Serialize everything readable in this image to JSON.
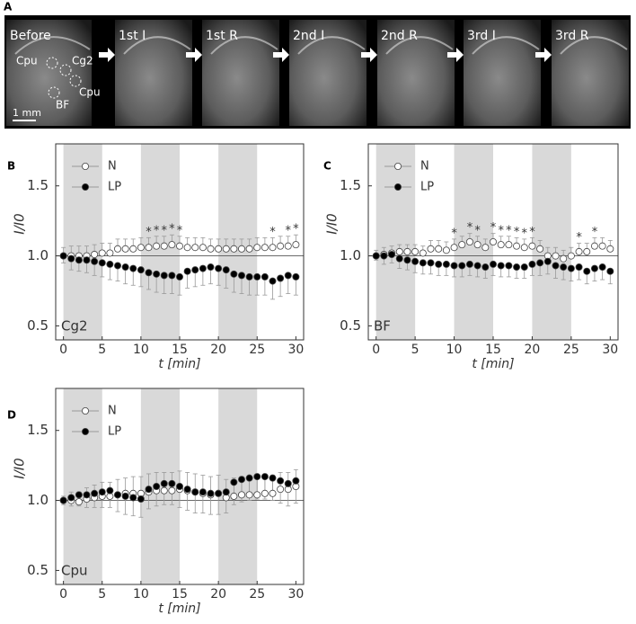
{
  "panel_a": {
    "label": "A",
    "frames": [
      "Before",
      "1st I",
      "1st R",
      "2nd I",
      "2nd R",
      "3rd I",
      "3rd R"
    ],
    "regions": [
      "Cpu",
      "Cg2",
      "Cpu",
      "BF"
    ],
    "scale": "1 mm"
  },
  "chart_data": [
    {
      "type": "errorbar",
      "panel": "B",
      "label": "Cg2",
      "xlabel": "t [min]",
      "ylabel": "I/I0",
      "xlim": [
        -1,
        31
      ],
      "ylim": [
        0.4,
        1.8
      ],
      "xticks": [
        0,
        5,
        10,
        15,
        20,
        25,
        30
      ],
      "yticks": [
        0.5,
        {
          "value": 1,
          "label": "1.0"
        },
        1.5
      ],
      "shaded": [
        [
          0,
          5
        ],
        [
          10,
          15
        ],
        [
          20,
          25
        ]
      ],
      "hline": 1,
      "legend": "upper-left",
      "x": [
        0,
        1,
        2,
        3,
        4,
        5,
        6,
        7,
        8,
        9,
        10,
        11,
        12,
        13,
        14,
        15,
        16,
        17,
        18,
        19,
        20,
        21,
        22,
        23,
        24,
        25,
        26,
        27,
        28,
        29,
        30
      ],
      "series": [
        {
          "name": "N",
          "color": "#ffffff",
          "error_direction": "up",
          "values": [
            1.0,
            1.0,
            1.0,
            1.0,
            1.01,
            1.02,
            1.02,
            1.05,
            1.05,
            1.05,
            1.06,
            1.06,
            1.07,
            1.07,
            1.08,
            1.07,
            1.06,
            1.06,
            1.06,
            1.05,
            1.05,
            1.05,
            1.05,
            1.05,
            1.05,
            1.06,
            1.06,
            1.06,
            1.07,
            1.07,
            1.08
          ],
          "errors": [
            0.06,
            0.07,
            0.07,
            0.07,
            0.07,
            0.07,
            0.07,
            0.07,
            0.07,
            0.07,
            0.07,
            0.07,
            0.07,
            0.07,
            0.07,
            0.07,
            0.07,
            0.07,
            0.07,
            0.07,
            0.07,
            0.07,
            0.07,
            0.07,
            0.07,
            0.07,
            0.07,
            0.07,
            0.07,
            0.07,
            0.07
          ]
        },
        {
          "name": "LP",
          "color": "#000000",
          "error_direction": "down",
          "values": [
            1.0,
            0.98,
            0.97,
            0.97,
            0.96,
            0.95,
            0.94,
            0.93,
            0.92,
            0.91,
            0.9,
            0.88,
            0.87,
            0.86,
            0.86,
            0.85,
            0.89,
            0.9,
            0.91,
            0.92,
            0.91,
            0.9,
            0.87,
            0.86,
            0.85,
            0.85,
            0.85,
            0.82,
            0.84,
            0.86,
            0.85
          ],
          "errors": [
            0.05,
            0.08,
            0.08,
            0.09,
            0.1,
            0.1,
            0.11,
            0.11,
            0.12,
            0.12,
            0.12,
            0.12,
            0.13,
            0.13,
            0.13,
            0.13,
            0.12,
            0.12,
            0.12,
            0.12,
            0.12,
            0.13,
            0.13,
            0.13,
            0.13,
            0.13,
            0.13,
            0.13,
            0.13,
            0.13,
            0.13
          ]
        }
      ],
      "star_label": "*",
      "star_x": [
        11,
        12,
        13,
        14,
        15,
        27,
        29,
        30
      ]
    },
    {
      "type": "errorbar",
      "panel": "C",
      "label": "BF",
      "xlabel": "t [min]",
      "ylabel": "I/I0",
      "xlim": [
        -1,
        31
      ],
      "ylim": [
        0.4,
        1.8
      ],
      "xticks": [
        0,
        5,
        10,
        15,
        20,
        25,
        30
      ],
      "yticks": [
        0.5,
        {
          "value": 1,
          "label": "1.0"
        },
        1.5
      ],
      "shaded": [
        [
          0,
          5
        ],
        [
          10,
          15
        ],
        [
          20,
          25
        ]
      ],
      "hline": 1,
      "legend": "upper-left",
      "x": [
        0,
        1,
        2,
        3,
        4,
        5,
        6,
        7,
        8,
        9,
        10,
        11,
        12,
        13,
        14,
        15,
        16,
        17,
        18,
        19,
        20,
        21,
        22,
        23,
        24,
        25,
        26,
        27,
        28,
        29,
        30
      ],
      "series": [
        {
          "name": "N",
          "color": "#ffffff",
          "error_direction": "up",
          "values": [
            1.0,
            1.01,
            1.02,
            1.03,
            1.03,
            1.03,
            1.02,
            1.05,
            1.05,
            1.04,
            1.06,
            1.08,
            1.1,
            1.08,
            1.06,
            1.1,
            1.08,
            1.08,
            1.07,
            1.06,
            1.07,
            1.05,
            1.0,
            1.0,
            0.98,
            1.0,
            1.03,
            1.03,
            1.07,
            1.07,
            1.05
          ],
          "errors": [
            0.04,
            0.05,
            0.05,
            0.05,
            0.05,
            0.05,
            0.05,
            0.06,
            0.06,
            0.06,
            0.06,
            0.06,
            0.06,
            0.06,
            0.06,
            0.06,
            0.06,
            0.06,
            0.06,
            0.06,
            0.06,
            0.06,
            0.06,
            0.06,
            0.06,
            0.06,
            0.06,
            0.06,
            0.06,
            0.06,
            0.06
          ]
        },
        {
          "name": "LP",
          "color": "#000000",
          "error_direction": "down",
          "values": [
            1.0,
            1.0,
            1.01,
            0.98,
            0.97,
            0.96,
            0.95,
            0.95,
            0.94,
            0.94,
            0.93,
            0.93,
            0.94,
            0.93,
            0.92,
            0.94,
            0.93,
            0.93,
            0.92,
            0.92,
            0.94,
            0.95,
            0.96,
            0.93,
            0.92,
            0.91,
            0.92,
            0.89,
            0.91,
            0.92,
            0.89
          ],
          "errors": [
            0.03,
            0.06,
            0.06,
            0.07,
            0.07,
            0.08,
            0.08,
            0.08,
            0.08,
            0.08,
            0.08,
            0.08,
            0.08,
            0.08,
            0.08,
            0.08,
            0.08,
            0.08,
            0.08,
            0.08,
            0.08,
            0.09,
            0.09,
            0.09,
            0.09,
            0.09,
            0.09,
            0.09,
            0.09,
            0.09,
            0.09
          ]
        }
      ],
      "star_label": "*",
      "star_x": [
        10,
        12,
        13,
        15,
        16,
        17,
        18,
        19,
        20,
        26,
        28
      ]
    },
    {
      "type": "errorbar",
      "panel": "D",
      "label": "Cpu",
      "xlabel": "t [min]",
      "ylabel": "I/I0",
      "xlim": [
        -1,
        31
      ],
      "ylim": [
        0.4,
        1.8
      ],
      "xticks": [
        0,
        5,
        10,
        15,
        20,
        25,
        30
      ],
      "yticks": [
        0.5,
        {
          "value": 1,
          "label": "1.0"
        },
        1.5
      ],
      "shaded": [
        [
          0,
          5
        ],
        [
          10,
          15
        ],
        [
          20,
          25
        ]
      ],
      "hline": 1,
      "legend": "upper-left",
      "x": [
        0,
        1,
        2,
        3,
        4,
        5,
        6,
        7,
        8,
        9,
        10,
        11,
        12,
        13,
        14,
        15,
        16,
        17,
        18,
        19,
        20,
        21,
        22,
        23,
        24,
        25,
        26,
        27,
        28,
        29,
        30
      ],
      "series": [
        {
          "name": "N",
          "color": "#ffffff",
          "error_direction": "up",
          "values": [
            1.0,
            1.0,
            0.99,
            1.01,
            1.02,
            1.03,
            1.03,
            1.04,
            1.05,
            1.05,
            1.05,
            1.06,
            1.07,
            1.07,
            1.07,
            1.08,
            1.07,
            1.06,
            1.05,
            1.04,
            1.05,
            1.02,
            1.03,
            1.04,
            1.04,
            1.04,
            1.05,
            1.05,
            1.08,
            1.08,
            1.1
          ],
          "errors": [
            0.03,
            0.06,
            0.07,
            0.08,
            0.09,
            0.1,
            0.1,
            0.11,
            0.11,
            0.12,
            0.12,
            0.13,
            0.13,
            0.13,
            0.13,
            0.13,
            0.13,
            0.13,
            0.13,
            0.13,
            0.13,
            0.13,
            0.13,
            0.13,
            0.13,
            0.13,
            0.13,
            0.13,
            0.12,
            0.12,
            0.12
          ]
        },
        {
          "name": "LP",
          "color": "#000000",
          "error_direction": "down",
          "values": [
            1.0,
            1.02,
            1.04,
            1.04,
            1.05,
            1.06,
            1.07,
            1.04,
            1.03,
            1.02,
            1.01,
            1.08,
            1.1,
            1.12,
            1.12,
            1.1,
            1.08,
            1.06,
            1.06,
            1.05,
            1.05,
            1.06,
            1.13,
            1.15,
            1.16,
            1.17,
            1.17,
            1.16,
            1.14,
            1.12,
            1.14
          ],
          "errors": [
            0.03,
            0.06,
            0.08,
            0.09,
            0.1,
            0.11,
            0.12,
            0.12,
            0.13,
            0.13,
            0.13,
            0.14,
            0.14,
            0.15,
            0.15,
            0.15,
            0.15,
            0.15,
            0.15,
            0.15,
            0.15,
            0.15,
            0.16,
            0.16,
            0.16,
            0.16,
            0.16,
            0.16,
            0.16,
            0.16,
            0.16
          ]
        }
      ],
      "star_label": "*",
      "star_x": []
    }
  ]
}
